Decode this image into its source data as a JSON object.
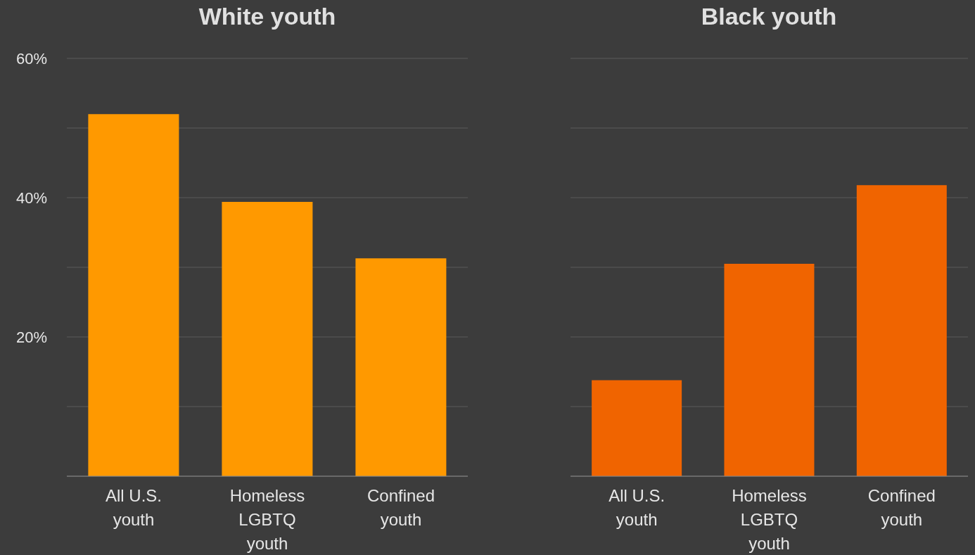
{
  "chart_data": [
    {
      "type": "bar",
      "title": "White youth",
      "categories": [
        "All U.S. youth",
        "Homeless LGBTQ youth",
        "Confined youth"
      ],
      "values": [
        52.0,
        39.4,
        31.3
      ],
      "color": "#ff9900",
      "ylim": [
        0,
        60
      ],
      "yticks": [
        {
          "value": 0,
          "label": null
        },
        {
          "value": 10,
          "label": null
        },
        {
          "value": 20,
          "label": "20%"
        },
        {
          "value": 30,
          "label": null
        },
        {
          "value": 40,
          "label": "40%"
        },
        {
          "value": 50,
          "label": null
        },
        {
          "value": 60,
          "label": "60%"
        }
      ],
      "grid": "y"
    },
    {
      "type": "bar",
      "title": "Black youth",
      "categories": [
        "All U.S. youth",
        "Homeless LGBTQ youth",
        "Confined youth"
      ],
      "values": [
        13.8,
        30.5,
        41.8
      ],
      "color": "#f06400",
      "ylim": [
        0,
        60
      ],
      "yticks": [
        {
          "value": 0,
          "label": null
        },
        {
          "value": 10,
          "label": null
        },
        {
          "value": 20,
          "label": null
        },
        {
          "value": 30,
          "label": null
        },
        {
          "value": 40,
          "label": null
        },
        {
          "value": 50,
          "label": null
        },
        {
          "value": 60,
          "label": null
        }
      ],
      "grid": "y",
      "tick_labels": "x"
    }
  ]
}
